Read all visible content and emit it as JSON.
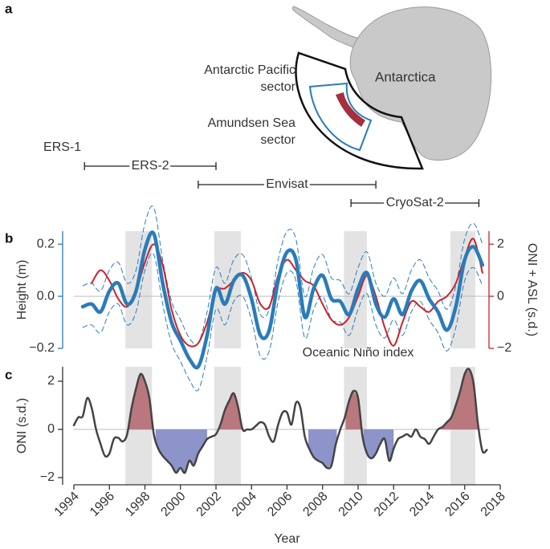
{
  "chart_data": [
    {
      "type": "timeline",
      "panel_label": "a",
      "xlim": [
        1994,
        2018
      ],
      "map": {
        "region_label": "Antarctica",
        "sectors": [
          {
            "label_lines": [
              "Antarctic Pacific",
              "sector"
            ],
            "color": "#111111"
          },
          {
            "label_lines": [
              "Amundsen Sea",
              "sector"
            ],
            "color": "#2b7bba"
          }
        ]
      },
      "bars": [
        {
          "name": "ERS-1",
          "start": 1992.4,
          "end": 1994.3
        },
        {
          "name": "ERS-2",
          "start": 1994.6,
          "end": 2002.0
        },
        {
          "name": "Envisat",
          "start": 2001.0,
          "end": 2011.0
        },
        {
          "name": "CryoSat-2",
          "start": 2009.6,
          "end": 2016.8
        }
      ]
    },
    {
      "type": "line",
      "panel_label": "b",
      "ylabel": "Height (m)",
      "y2label": "ONI + ASL (s.d.)",
      "xlim": [
        1994,
        2018
      ],
      "ylim": [
        -0.2,
        0.25
      ],
      "yticks": [
        {
          "value": -0.2,
          "label": "−0.2"
        },
        {
          "value": 0,
          "label": "0.0"
        },
        0.2
      ],
      "y2lim": [
        -2,
        2.5
      ],
      "y2ticks": [
        {
          "value": -2,
          "label": "−2"
        },
        0,
        2
      ],
      "axis_color": "#2b7bba",
      "y2_axis_color": "#c8242b",
      "zero_line": true,
      "shaded_periods": [
        [
          1996.9,
          1998.4
        ],
        [
          2001.9,
          2003.4
        ],
        [
          2009.2,
          2010.5
        ],
        [
          2015.2,
          2016.6
        ]
      ],
      "x": [
        1994.5,
        1995,
        1995.5,
        1996,
        1996.5,
        1997,
        1997.5,
        1998,
        1998.5,
        1999,
        1999.5,
        2000,
        2000.5,
        2001,
        2001.5,
        2002,
        2002.5,
        2003,
        2003.5,
        2004,
        2004.5,
        2005,
        2005.5,
        2006,
        2006.5,
        2007,
        2007.5,
        2008,
        2008.5,
        2009,
        2009.5,
        2010,
        2010.5,
        2011,
        2011.5,
        2012,
        2012.5,
        2013,
        2013.5,
        2014,
        2014.5,
        2015,
        2015.5,
        2016,
        2016.5,
        2017
      ],
      "series": [
        {
          "color": "#2b7bba",
          "dash": true,
          "linewidth": 1,
          "values": [
            0.04,
            0.05,
            0.02,
            0.1,
            0.13,
            0.05,
            0.1,
            0.28,
            0.34,
            0.14,
            -0.02,
            -0.09,
            -0.16,
            -0.18,
            -0.06,
            0.11,
            0.05,
            0.14,
            0.16,
            0.07,
            -0.07,
            -0.05,
            0.14,
            0.25,
            0.22,
            0,
            0.11,
            0.16,
            0.07,
            0.06,
            0.01,
            0.11,
            0.17,
            0.05,
            0,
            0.07,
            0.01,
            0.1,
            0.14,
            0.07,
            0.02,
            -0.05,
            0.04,
            0.22,
            0.28,
            0.2
          ]
        },
        {
          "color": "#2b7bba",
          "dash": true,
          "linewidth": 1,
          "values": [
            -0.12,
            -0.11,
            -0.14,
            -0.06,
            -0.03,
            -0.11,
            -0.06,
            0.1,
            0.16,
            -0.03,
            -0.18,
            -0.25,
            -0.32,
            -0.36,
            -0.23,
            -0.05,
            -0.11,
            -0.02,
            0,
            -0.09,
            -0.23,
            -0.21,
            -0.02,
            0.09,
            0.06,
            -0.16,
            -0.05,
            0,
            -0.09,
            -0.1,
            -0.15,
            -0.05,
            0.01,
            -0.11,
            -0.16,
            -0.09,
            -0.15,
            -0.06,
            -0.02,
            -0.09,
            -0.14,
            -0.21,
            -0.12,
            0.06,
            0.11,
            0.04
          ]
        },
        {
          "color": "#c8242b",
          "axis": "y2",
          "linewidth": 2,
          "values": [
            null,
            0.5,
            1.0,
            0.6,
            -0.1,
            -0.4,
            0.2,
            1.3,
            2.0,
            1.2,
            -0.5,
            -1.5,
            -1.9,
            -1.8,
            -1.0,
            0.2,
            0.3,
            0.6,
            0.9,
            0.6,
            -0.3,
            -0.4,
            0.8,
            1.4,
            1.0,
            0.6,
            0.4,
            -0.3,
            -0.9,
            -1.1,
            -0.8,
            0,
            0.8,
            0,
            -1.2,
            -1.9,
            -1.0,
            -0.2,
            -0.4,
            -0.6,
            -0.2,
            0,
            0.5,
            1.5,
            2.2,
            0.9
          ]
        },
        {
          "color": "#2b7bba",
          "linewidth": 4.5,
          "values": [
            -0.04,
            -0.03,
            -0.06,
            0.02,
            0.05,
            -0.03,
            0.02,
            0.18,
            0.24,
            0.05,
            -0.1,
            -0.17,
            -0.24,
            -0.27,
            -0.15,
            0.03,
            -0.03,
            0.06,
            0.08,
            -0.01,
            -0.15,
            -0.13,
            0.06,
            0.17,
            0.14,
            -0.08,
            0.03,
            0.08,
            -0.01,
            -0.02,
            -0.07,
            0.03,
            0.09,
            -0.03,
            -0.08,
            -0.01,
            -0.07,
            0.02,
            0.06,
            -0.01,
            -0.06,
            -0.13,
            -0.04,
            0.14,
            0.19,
            0.12
          ]
        }
      ]
    },
    {
      "type": "line",
      "panel_label": "c",
      "xlabel": "Year",
      "ylabel": "ONI (s.d.)",
      "annotation": "Oceanic Niño index",
      "xlim": [
        1994,
        2018
      ],
      "xticks": [
        1994,
        1996,
        1998,
        2000,
        2002,
        2004,
        2006,
        2008,
        2010,
        2012,
        2014,
        2016,
        2018
      ],
      "ylim": [
        -2.3,
        2.6
      ],
      "yticks": [
        {
          "value": -2,
          "label": "−2"
        },
        0,
        2
      ],
      "axis_color": "#333333",
      "zero_line": true,
      "shaded_periods": [
        [
          1996.9,
          1998.4
        ],
        [
          2001.9,
          2003.4
        ],
        [
          2009.2,
          2010.5
        ],
        [
          2015.2,
          2016.6
        ]
      ],
      "fills": [
        {
          "start": 1997.1,
          "end": 1998.5,
          "color": "#b9777e"
        },
        {
          "start": 2002.2,
          "end": 2003.5,
          "color": "#b9777e"
        },
        {
          "start": 2009.3,
          "end": 2010.2,
          "color": "#b9777e"
        },
        {
          "start": 2014.7,
          "end": 2016.75,
          "color": "#b9777e"
        },
        {
          "start": 1998.6,
          "end": 2001.5,
          "color": "#8d94c9"
        },
        {
          "start": 2007.2,
          "end": 2008.8,
          "color": "#8d94c9"
        },
        {
          "start": 2010.3,
          "end": 2012.0,
          "color": "#8d94c9"
        }
      ],
      "x": [
        1994,
        1994.25,
        1994.5,
        1994.75,
        1995,
        1995.25,
        1995.5,
        1995.75,
        1996,
        1996.25,
        1996.5,
        1996.75,
        1997,
        1997.25,
        1997.5,
        1997.75,
        1998,
        1998.25,
        1998.5,
        1998.75,
        1999,
        1999.25,
        1999.5,
        1999.75,
        2000,
        2000.25,
        2000.5,
        2000.75,
        2001,
        2001.25,
        2001.5,
        2001.75,
        2002,
        2002.25,
        2002.5,
        2002.75,
        2003,
        2003.25,
        2003.5,
        2003.75,
        2004,
        2004.25,
        2004.5,
        2004.75,
        2005,
        2005.25,
        2005.5,
        2005.75,
        2006,
        2006.25,
        2006.5,
        2006.75,
        2007,
        2007.25,
        2007.5,
        2007.75,
        2008,
        2008.25,
        2008.5,
        2008.75,
        2009,
        2009.25,
        2009.5,
        2009.75,
        2010,
        2010.25,
        2010.5,
        2010.75,
        2011,
        2011.25,
        2011.5,
        2011.75,
        2012,
        2012.25,
        2012.5,
        2012.75,
        2013,
        2013.25,
        2013.5,
        2013.75,
        2014,
        2014.25,
        2014.5,
        2014.75,
        2015,
        2015.25,
        2015.5,
        2015.75,
        2016,
        2016.25,
        2016.5,
        2016.75,
        2017,
        2017.25
      ],
      "series": [
        {
          "color": "#444444",
          "linewidth": 2.5,
          "values": [
            0.17,
            0.5,
            0.55,
            1.3,
            0.9,
            0,
            -0.6,
            -1.1,
            -1.0,
            -0.4,
            -0.35,
            -0.5,
            -0.2,
            0.9,
            1.7,
            2.3,
            2.0,
            1.3,
            -0.2,
            -0.8,
            -1.1,
            -1.3,
            -1.5,
            -1.8,
            -1.6,
            -1.8,
            -1.3,
            -1.5,
            -1.0,
            -0.7,
            -0.4,
            -0.3,
            -0.2,
            0.2,
            0.8,
            1.2,
            1.5,
            0.9,
            0,
            0,
            0,
            0.15,
            0.3,
            0.2,
            -0.3,
            -0.5,
            0.2,
            0.7,
            0.7,
            0.2,
            1.1,
            0.9,
            -0.3,
            -0.8,
            -1.15,
            -1.3,
            -1.4,
            -1.6,
            -1.5,
            -0.6,
            0,
            0.5,
            1.2,
            1.6,
            1.3,
            -0.3,
            -1.0,
            -1.2,
            -1.0,
            -0.6,
            -0.4,
            -1.3,
            -0.8,
            -0.4,
            -0.3,
            -0.2,
            -0.3,
            0,
            -0.3,
            -0.4,
            -0.6,
            -0.3,
            0,
            0.1,
            0.3,
            0.5,
            1.0,
            1.6,
            2.3,
            2.5,
            1.9,
            0.2,
            -0.9,
            -0.85
          ]
        }
      ]
    }
  ]
}
